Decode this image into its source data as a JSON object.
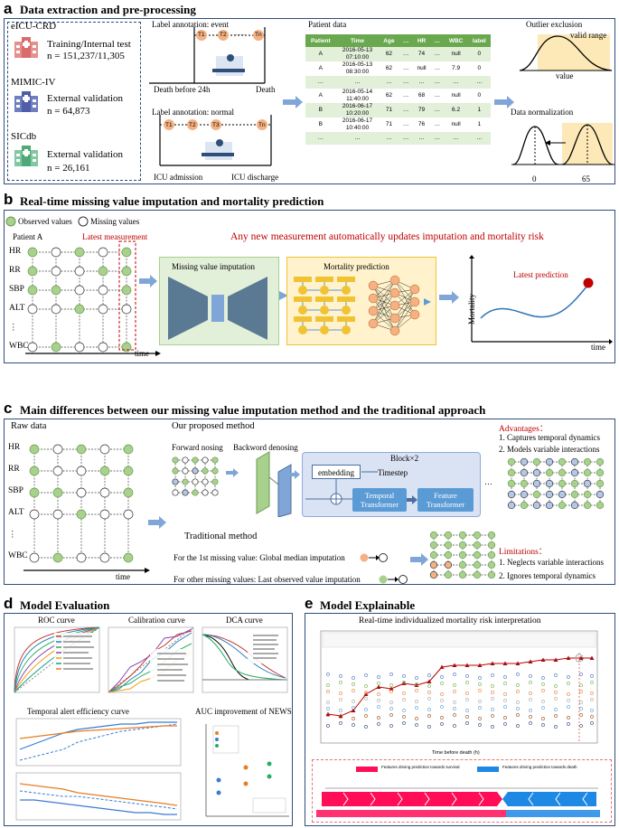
{
  "a": {
    "letter": "a",
    "title": "Data extraction and pre-processing",
    "datasets": [
      {
        "name": "eICU-CRD",
        "role": "Training/Internal test",
        "n": "n = 151,237/11,305"
      },
      {
        "name": "MIMIC-IV",
        "role": "External validation",
        "n": "n = 64,873"
      },
      {
        "name": "SICdb",
        "role": "External validation",
        "n": "n = 26,161"
      }
    ],
    "label_event": "Label annotation: event",
    "label_normal": "Label annotation: normal",
    "death_before": "Death before 24h",
    "death": "Death",
    "icu_admission": "ICU admission",
    "icu_discharge": "ICU discharge",
    "tags_event": [
      "T1",
      "T2",
      "Tn"
    ],
    "tags_normal": [
      "T1",
      "T2",
      "T3",
      "Tn"
    ],
    "dots": "……",
    "patient_data_title": "Patient data",
    "table_headers": [
      "Patient",
      "Time",
      "Age",
      "…",
      "HR",
      "…",
      "WBC",
      "label"
    ],
    "table_rows": [
      [
        "A",
        "2016-05-13\n07:10:00",
        "62",
        "…",
        "74",
        "…",
        "null",
        "0"
      ],
      [
        "A",
        "2016-05-13\n08:30:00",
        "62",
        "…",
        "null",
        "…",
        "7.9",
        "0"
      ],
      [
        "…",
        "…",
        "…",
        "…",
        "…",
        "…",
        "…",
        "…"
      ],
      [
        "A",
        "2016-05-14\n11:40:00",
        "62",
        "…",
        "68",
        "…",
        "null",
        "0"
      ],
      [
        "B",
        "2016-06-17\n10:20:00",
        "71",
        "…",
        "79",
        "…",
        "6.2",
        "1"
      ],
      [
        "B",
        "2016-06-17\n10:40:00",
        "71",
        "…",
        "76",
        "…",
        "null",
        "1"
      ],
      [
        "…",
        "…",
        "…",
        "…",
        "…",
        "…",
        "…",
        "…"
      ]
    ],
    "outlier_title": "Outlier exclusion",
    "valid_range": "valid range",
    "value_label": "value",
    "norm_title": "Data normalization",
    "norm_ticks": [
      "0",
      "65"
    ]
  },
  "b": {
    "letter": "b",
    "title": "Real-time missing value imputation and mortality prediction",
    "legend_observed": "Observed values",
    "legend_missing": "Missing values",
    "patient": "Patient  A",
    "latest_measurement": "Latest measurement",
    "headline": "Any new measurement automatically updates imputation and mortality risk",
    "vars": [
      "HR",
      "RR",
      "SBP",
      "ALT",
      "⋮",
      "WBC"
    ],
    "time": "time",
    "imputation_title": "Missing value imputation",
    "mortality_title": "Mortality prediction",
    "mortality_axis": "Mortality",
    "latest_prediction": "Latest prediction"
  },
  "c": {
    "letter": "c",
    "title": "Main differences between our missing value imputation method and the traditional approach",
    "raw_data": "Raw data",
    "vars": [
      "HR",
      "RR",
      "SBP",
      "ALT",
      "⋮",
      "WBC"
    ],
    "time": "time",
    "proposed": "Our proposed method",
    "forward": "Forward nosing",
    "backward": "Backword denosing",
    "block": "Block×2",
    "embedding": "embedding",
    "timestep": "Timestep",
    "temporal_transformer": "Temporal Transformer",
    "feature_transformer": "Feature Transformer",
    "advantages_title": "Advantages：",
    "advantages": [
      "1. Captures temporal dynamics",
      "2. Models variable interactions"
    ],
    "traditional": "Traditional  method",
    "trad_first": "For the 1st missing value: Global median imputation",
    "trad_other": "For other missing values: Last observed value imputation",
    "limitations_title": "Limitations：",
    "limitations": [
      "1. Neglects variable interactions",
      "2. Ignores temporal dynamics"
    ]
  },
  "d": {
    "letter": "d",
    "title": "Model Evaluation",
    "roc": "ROC curve",
    "calibration": "Calibration curve",
    "dca": "DCA curve",
    "temporal": "Temporal alert efficiency curve",
    "auc_news": "AUC improvement of NEWS"
  },
  "e": {
    "letter": "e",
    "title": "Model Explainable",
    "chart_title": "Real-time individualized mortality risk interpretation",
    "xlabel": "Time before death (h)",
    "force_left": "Features driving prediction towards survival",
    "force_right": "Features driving prediction towards death"
  },
  "colors": {
    "green": "#a9d18e",
    "orange": "#f4b183",
    "navy": "#2f4e7a",
    "red": "#c00000",
    "steel": "#5b9bd5"
  }
}
